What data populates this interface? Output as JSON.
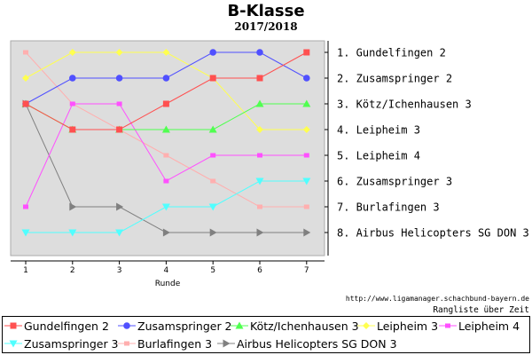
{
  "chart_data": {
    "type": "line",
    "title": "B-Klasse",
    "subtitle": "2017/2018",
    "xlabel": "Runde",
    "ylabel": "",
    "x": [
      1,
      2,
      3,
      4,
      5,
      6,
      7
    ],
    "ylim": [
      1,
      8
    ],
    "y_inverted": true,
    "grid": false,
    "legend_position": "bottom",
    "right_labels": [
      "1. Gundelfingen 2",
      "2. Zusamspringer 2",
      "3. Kötz/Ichenhausen 3",
      "4. Leipheim 3",
      "5. Leipheim 4",
      "6. Zusamspringer 3",
      "7. Burlafingen 3",
      "8. Airbus Helicopters SG DON 3"
    ],
    "series": [
      {
        "name": "Gundelfingen 2",
        "color": "#ff5050",
        "marker": "square",
        "values": [
          3,
          4,
          4,
          3,
          2,
          2,
          1
        ]
      },
      {
        "name": "Zusamspringer 2",
        "color": "#5050ff",
        "marker": "circle",
        "values": [
          3,
          2,
          2,
          2,
          1,
          1,
          2
        ]
      },
      {
        "name": "Kötz/Ichenhausen 3",
        "color": "#50ff50",
        "marker": "triangle-up",
        "values": [
          3,
          4,
          4,
          4,
          4,
          3,
          3
        ]
      },
      {
        "name": "Leipheim 3",
        "color": "#ffff50",
        "marker": "diamond",
        "values": [
          2,
          1,
          1,
          1,
          2,
          4,
          4
        ]
      },
      {
        "name": "Leipheim 4",
        "color": "#ff50ff",
        "marker": "square-small",
        "values": [
          7,
          3,
          3,
          6,
          5,
          5,
          5
        ]
      },
      {
        "name": "Zusamspringer 3",
        "color": "#50ffff",
        "marker": "triangle-down",
        "values": [
          8,
          8,
          8,
          7,
          7,
          6,
          6
        ]
      },
      {
        "name": "Burlafingen 3",
        "color": "#ffafaf",
        "marker": "square-small",
        "values": [
          1,
          3,
          4,
          5,
          6,
          7,
          7
        ]
      },
      {
        "name": "Airbus Helicopters SG DON 3",
        "color": "#808080",
        "marker": "triangle-right",
        "values": [
          3,
          7,
          7,
          8,
          8,
          8,
          8
        ]
      }
    ]
  },
  "credit": {
    "url": "http://www.ligamanager.schachbund-bayern.de",
    "note": "Rangliste über Zeit"
  }
}
